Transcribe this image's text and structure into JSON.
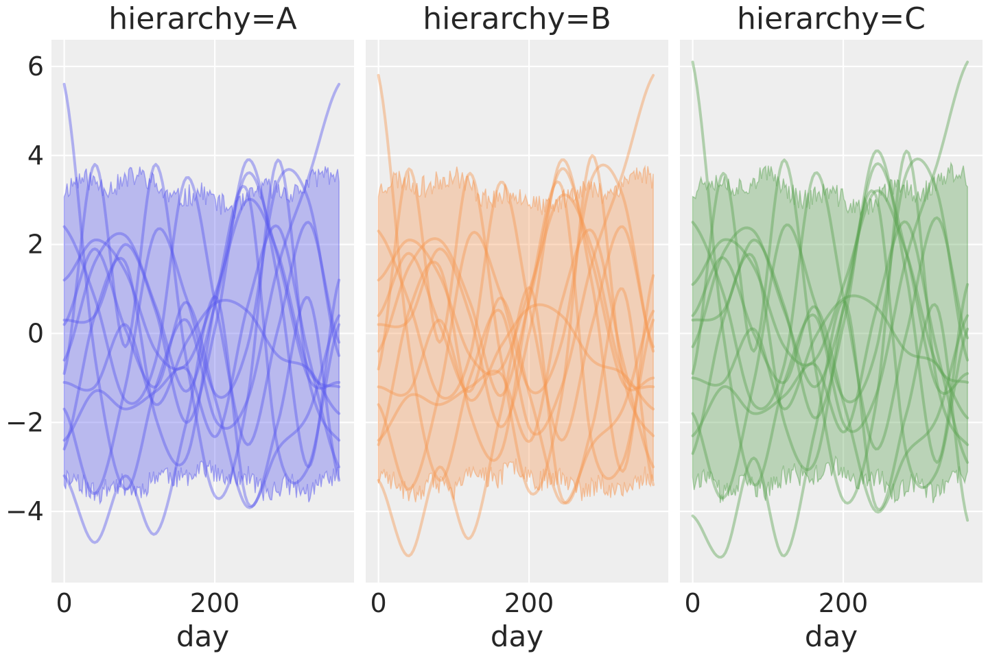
{
  "chart_data": {
    "type": "line",
    "shared_y": true,
    "ylim": [
      -5.6,
      6.6
    ],
    "yticks": [
      6,
      4,
      2,
      0,
      -2,
      -4
    ],
    "ytick_labels": [
      "6",
      "4",
      "2",
      "0",
      "−2",
      "−4"
    ],
    "xlim": [
      -17,
      385
    ],
    "xticks": [
      0,
      200
    ],
    "xtick_labels": [
      "0",
      "200"
    ],
    "grid": true,
    "panels": [
      {
        "title": "hierarchy=A",
        "xlabel": "day",
        "color": "#5555ee",
        "band_upper_level": 3.2,
        "band_lower_level": -3.3,
        "band_jitter": 0.25,
        "seed": 11,
        "curves": [
          [
            5.6,
            -0.5,
            -3.5,
            -1.2,
            0.3,
            -2.0,
            -1.5,
            1.5,
            3.5,
            5.6
          ],
          [
            -3.2,
            -4.7,
            -3.2,
            -4.5,
            -2.0,
            0.8,
            -3.8,
            -2.0,
            0.8,
            -3.3
          ],
          [
            1.2,
            2.1,
            1.4,
            -0.4,
            -0.7,
            1.0,
            3.0,
            1.8,
            -0.8,
            -1.2
          ],
          [
            0.2,
            1.9,
            0.1,
            -1.2,
            0.7,
            -1.6,
            -3.9,
            -2.6,
            -1.8,
            0.4
          ],
          [
            -0.6,
            1.6,
            2.2,
            0.6,
            -1.3,
            0.8,
            3.6,
            1.7,
            -1.0,
            -1.1
          ],
          [
            -1.7,
            -3.6,
            -1.2,
            2.3,
            0.8,
            -1.4,
            -0.3,
            3.4,
            3.0,
            -0.5
          ],
          [
            -1.1,
            -1.2,
            0.2,
            -1.6,
            -0.2,
            0.7,
            0.5,
            -0.5,
            -0.8,
            -1.8
          ],
          [
            -2.4,
            -1.3,
            -1.7,
            -1.3,
            -0.8,
            -2.3,
            0.6,
            2.4,
            -0.5,
            -3.0
          ],
          [
            0.3,
            0.4,
            2.0,
            0.5,
            -2.0,
            0.3,
            3.9,
            1.2,
            -3.0,
            1.2
          ],
          [
            -0.9,
            3.8,
            -0.3,
            3.8,
            -0.6,
            -3.7,
            -1.5,
            3.9,
            -1.0,
            -2.4
          ],
          [
            2.4,
            0.8,
            -1.5,
            -0.6,
            3.5,
            0.5,
            -2.5,
            0.1,
            2.5,
            -0.2
          ],
          [
            -2.6,
            0.4,
            1.6,
            -1.9,
            -2.8,
            0.9,
            3.2,
            -2.6,
            -3.0,
            0.2
          ]
        ]
      },
      {
        "title": "hierarchy=B",
        "xlabel": "day",
        "color": "#f5954f",
        "band_upper_level": 3.2,
        "band_lower_level": -3.3,
        "band_jitter": 0.25,
        "seed": 23,
        "curves": [
          [
            5.8,
            -0.3,
            -3.3,
            -1.0,
            0.5,
            -2.2,
            -1.2,
            1.6,
            3.6,
            5.8
          ],
          [
            -3.3,
            -5.0,
            -3.0,
            -4.6,
            -1.8,
            1.0,
            -3.7,
            -2.1,
            1.0,
            -3.4
          ],
          [
            1.2,
            2.1,
            1.3,
            -0.5,
            -0.8,
            1.1,
            3.1,
            1.9,
            -0.9,
            -1.2
          ],
          [
            0.4,
            1.8,
            0.2,
            -1.3,
            0.8,
            -1.5,
            -3.8,
            -2.5,
            -1.7,
            0.5
          ],
          [
            -0.4,
            1.5,
            2.1,
            0.7,
            -1.4,
            0.9,
            3.7,
            1.6,
            -1.1,
            -1.0
          ],
          [
            -1.6,
            -3.5,
            -1.3,
            2.2,
            0.9,
            -1.3,
            -0.2,
            3.5,
            3.1,
            -0.4
          ],
          [
            -1.2,
            -1.3,
            0.3,
            -1.5,
            -0.3,
            0.6,
            0.4,
            -0.6,
            -0.9,
            -1.7
          ],
          [
            -2.4,
            -1.4,
            -1.6,
            -1.2,
            -0.9,
            -2.4,
            0.7,
            2.3,
            -0.6,
            -3.0
          ],
          [
            0.2,
            0.3,
            1.9,
            0.4,
            -2.1,
            0.2,
            3.9,
            1.1,
            -3.1,
            1.3
          ],
          [
            -0.8,
            3.7,
            -0.2,
            3.6,
            -0.5,
            -3.6,
            -1.4,
            4.0,
            -0.9,
            -2.3
          ],
          [
            2.3,
            0.7,
            -1.4,
            -0.5,
            3.4,
            0.4,
            -2.4,
            0.2,
            2.4,
            -0.3
          ],
          [
            -2.5,
            0.5,
            1.5,
            -1.8,
            -2.7,
            1.0,
            3.3,
            -2.5,
            -2.9,
            0.3
          ]
        ]
      },
      {
        "title": "hierarchy=C",
        "xlabel": "day",
        "color": "#59a14f",
        "band_upper_level": 3.2,
        "band_lower_level": -3.3,
        "band_jitter": 0.25,
        "seed": 37,
        "curves": [
          [
            6.1,
            0.0,
            -3.4,
            -1.1,
            0.4,
            -2.1,
            -1.4,
            1.7,
            3.8,
            6.1
          ],
          [
            -4.1,
            -5.0,
            -2.8,
            -5.0,
            -2.2,
            0.7,
            -3.9,
            -1.8,
            0.6,
            -4.2
          ],
          [
            1.1,
            2.1,
            1.5,
            -0.3,
            -0.6,
            1.2,
            3.2,
            1.8,
            -0.7,
            -1.1
          ],
          [
            0.4,
            1.7,
            0.0,
            -1.1,
            0.6,
            -1.7,
            -4.0,
            -2.7,
            -1.9,
            0.4
          ],
          [
            -0.3,
            1.8,
            2.3,
            0.5,
            -1.2,
            0.7,
            3.8,
            1.8,
            -1.2,
            -0.9
          ],
          [
            -1.8,
            -3.7,
            -1.1,
            2.4,
            0.7,
            -1.5,
            -0.4,
            3.6,
            3.2,
            -0.6
          ],
          [
            -1.0,
            -1.1,
            0.1,
            -1.7,
            -0.1,
            0.8,
            0.6,
            -0.4,
            -0.7,
            -1.9
          ],
          [
            -2.3,
            -1.2,
            -1.8,
            -1.4,
            -0.7,
            -2.2,
            0.5,
            2.5,
            -0.4,
            -2.9
          ],
          [
            0.3,
            0.5,
            2.1,
            0.6,
            -1.9,
            0.4,
            4.1,
            1.3,
            -2.9,
            1.1
          ],
          [
            -0.9,
            3.6,
            -0.4,
            3.9,
            -0.7,
            -3.8,
            -1.6,
            4.1,
            -1.1,
            -2.5
          ],
          [
            2.5,
            0.9,
            -1.6,
            -0.7,
            3.6,
            0.6,
            -2.6,
            0.0,
            2.6,
            -0.1
          ],
          [
            -2.7,
            0.3,
            1.7,
            -2.0,
            -2.9,
            0.8,
            3.1,
            -2.7,
            -3.1,
            0.1
          ]
        ]
      }
    ]
  }
}
